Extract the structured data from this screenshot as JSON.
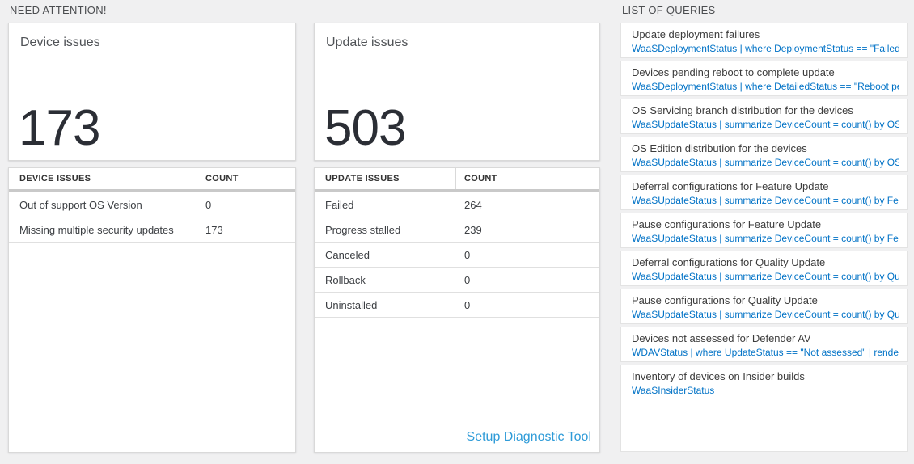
{
  "colors": {
    "page_background": "#f0f0f1",
    "card_background": "#ffffff",
    "query_link_blue": "#0072c6",
    "footer_link_blue": "#2e9bd8",
    "big_number_dark": "#2b2e35",
    "table_divider_gray": "#c9c9c9"
  },
  "need_attention": {
    "label": "NEED ATTENTION!",
    "cards": [
      {
        "title": "Device issues",
        "count": "173",
        "table": {
          "headers": [
            "DEVICE ISSUES",
            "COUNT"
          ],
          "rows": [
            {
              "label": "Out of support OS Version",
              "count": "0"
            },
            {
              "label": "Missing multiple security updates",
              "count": "173"
            }
          ]
        }
      },
      {
        "title": "Update issues",
        "count": "503",
        "table": {
          "headers": [
            "UPDATE ISSUES",
            "COUNT"
          ],
          "rows": [
            {
              "label": "Failed",
              "count": "264"
            },
            {
              "label": "Progress stalled",
              "count": "239"
            },
            {
              "label": "Canceled",
              "count": "0"
            },
            {
              "label": "Rollback",
              "count": "0"
            },
            {
              "label": "Uninstalled",
              "count": "0"
            }
          ],
          "footer_link": "Setup Diagnostic Tool"
        }
      }
    ]
  },
  "queries": {
    "label": "LIST OF QUERIES",
    "items": [
      {
        "title": "Update deployment failures",
        "query": "WaaSDeploymentStatus | where DeploymentStatus == \"Failed\" |..."
      },
      {
        "title": "Devices pending reboot to complete update",
        "query": "WaaSDeploymentStatus | where DetailedStatus == \"Reboot pend..."
      },
      {
        "title": "OS Servicing branch distribution for the devices",
        "query": "WaaSUpdateStatus | summarize DeviceCount = count() by OSSer..."
      },
      {
        "title": "OS Edition distribution for the devices",
        "query": "WaaSUpdateStatus | summarize DeviceCount = count() by OSEdit..."
      },
      {
        "title": "Deferral configurations for Feature Update",
        "query": "WaaSUpdateStatus | summarize DeviceCount = count() by Featur..."
      },
      {
        "title": "Pause configurations for Feature Update",
        "query": "WaaSUpdateStatus | summarize DeviceCount = count() by Featur..."
      },
      {
        "title": "Deferral configurations for Quality Update",
        "query": "WaaSUpdateStatus | summarize DeviceCount = count() by Qualit..."
      },
      {
        "title": "Pause configurations for Quality Update",
        "query": "WaaSUpdateStatus | summarize DeviceCount = count() by Qualit..."
      },
      {
        "title": "Devices not assessed for Defender AV",
        "query": "WDAVStatus | where UpdateStatus == \"Not assessed\" | render ta..."
      },
      {
        "title": "Inventory of devices on Insider builds",
        "query": "WaaSInsiderStatus"
      }
    ]
  }
}
